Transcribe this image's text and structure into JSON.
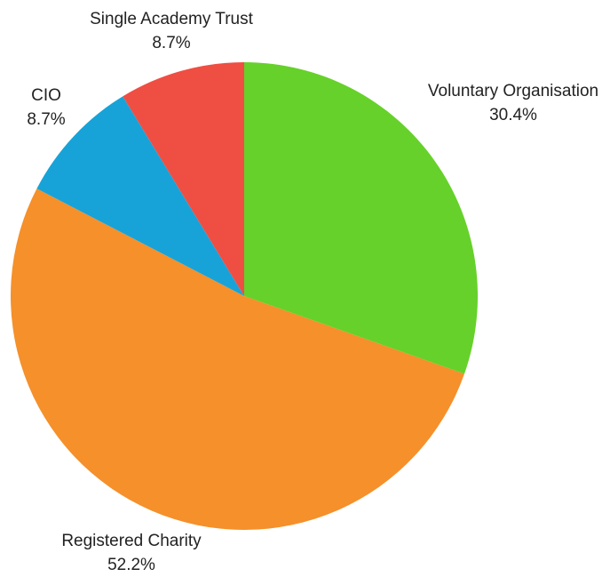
{
  "chart_data": {
    "type": "pie",
    "categories": [
      "Voluntary Organisation",
      "Registered Charity",
      "CIO",
      "Single Academy Trust"
    ],
    "values": [
      30.4,
      52.2,
      8.7,
      8.7
    ],
    "value_labels": [
      "30.4%",
      "52.2%",
      "8.7%",
      "8.7%"
    ],
    "colors": [
      "#66d12a",
      "#f5902a",
      "#17a3d8",
      "#ef4e43"
    ]
  }
}
